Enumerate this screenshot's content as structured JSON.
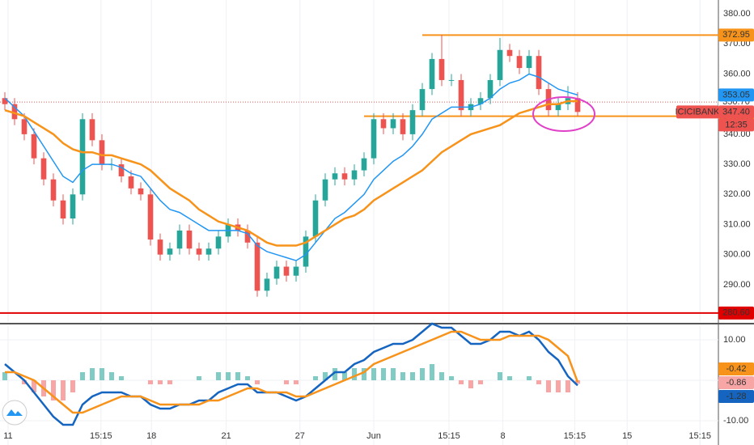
{
  "chart_data": [
    {
      "type": "candlestick",
      "symbol": "ICICIBANK",
      "countdown": "12:35",
      "x": [
        0,
        1,
        2,
        3,
        4,
        5,
        6,
        7,
        8,
        9,
        10,
        11,
        12,
        13,
        14,
        15,
        16,
        17,
        18,
        19,
        20,
        21,
        22,
        23,
        24,
        25,
        26,
        27,
        28,
        29,
        30,
        31,
        32,
        33,
        34,
        35,
        36,
        37,
        38,
        39,
        40,
        41,
        42,
        43,
        44,
        45,
        46,
        47,
        48,
        49,
        50,
        51,
        52,
        53,
        54,
        55,
        56,
        57,
        58,
        59
      ],
      "open": [
        352,
        350,
        345,
        340,
        332,
        325,
        318,
        312,
        320,
        345,
        338,
        330,
        330,
        326,
        322,
        320,
        305,
        300,
        302,
        308,
        302,
        300,
        302,
        306,
        310,
        308,
        304,
        288,
        292,
        296,
        293,
        296,
        306,
        318,
        325,
        327,
        325,
        328,
        332,
        345,
        342,
        345,
        340,
        348,
        355,
        365,
        358,
        358,
        348,
        350,
        352,
        358,
        368,
        366,
        362,
        366,
        355,
        348,
        350,
        352
      ],
      "high": [
        354,
        352,
        347,
        342,
        334,
        327,
        320,
        322,
        347,
        347,
        340,
        332,
        332,
        328,
        324,
        322,
        307,
        304,
        310,
        310,
        304,
        304,
        308,
        312,
        312,
        310,
        306,
        294,
        298,
        298,
        298,
        308,
        320,
        327,
        329,
        329,
        330,
        334,
        347,
        347,
        347,
        347,
        350,
        357,
        367,
        373,
        360,
        360,
        352,
        354,
        360,
        372,
        370,
        368,
        368,
        368,
        357,
        352,
        356,
        354
      ],
      "low": [
        348,
        343,
        338,
        330,
        323,
        316,
        310,
        310,
        318,
        336,
        328,
        328,
        324,
        320,
        318,
        303,
        298,
        298,
        300,
        300,
        298,
        298,
        300,
        304,
        306,
        302,
        286,
        286,
        290,
        291,
        291,
        294,
        304,
        316,
        323,
        323,
        323,
        326,
        330,
        340,
        340,
        338,
        338,
        346,
        353,
        356,
        356,
        346,
        346,
        348,
        350,
        356,
        364,
        360,
        360,
        353,
        346,
        346,
        348,
        346
      ],
      "close": [
        350,
        345,
        340,
        332,
        325,
        318,
        312,
        320,
        345,
        338,
        330,
        330,
        326,
        322,
        320,
        305,
        300,
        302,
        308,
        302,
        300,
        302,
        306,
        310,
        308,
        304,
        288,
        292,
        296,
        293,
        296,
        306,
        318,
        325,
        327,
        325,
        328,
        332,
        345,
        342,
        345,
        340,
        348,
        355,
        365,
        358,
        358,
        348,
        350,
        352,
        358,
        368,
        366,
        362,
        366,
        355,
        348,
        350,
        352,
        347.4
      ],
      "up_color": "#26a69a",
      "down_color": "#ef5350",
      "lines": [
        {
          "color": "#2196f3",
          "values": [
            352,
            349,
            346,
            341,
            336,
            331,
            326,
            324,
            328,
            330,
            330,
            330,
            329,
            327,
            326,
            322,
            318,
            315,
            314,
            312,
            310,
            308,
            308,
            308,
            308,
            307,
            303,
            301,
            300,
            299,
            298,
            300,
            304,
            308,
            312,
            314,
            317,
            320,
            325,
            328,
            331,
            333,
            336,
            340,
            345,
            347,
            349,
            349,
            349,
            350,
            352,
            355,
            357,
            358,
            360,
            359,
            357,
            355,
            354,
            353.05
          ]
        },
        {
          "color": "#f7931a",
          "values": [
            348,
            347,
            346,
            344,
            342,
            340,
            337,
            335,
            334,
            334,
            333,
            333,
            332,
            331,
            330,
            328,
            325,
            322,
            320,
            318,
            315,
            313,
            311,
            310,
            309,
            308,
            306,
            304,
            303,
            303,
            303,
            304,
            306,
            308,
            310,
            312,
            313,
            315,
            318,
            320,
            322,
            324,
            326,
            328,
            331,
            334,
            336,
            338,
            340,
            341,
            342,
            343,
            345,
            347,
            348,
            349,
            350,
            350,
            351,
            351
          ]
        }
      ],
      "xlim": [
        -0.5,
        73.5
      ],
      "ylim": [
        277.6,
        384.6
      ],
      "yticks": [
        {
          "value": 290,
          "label": "290.00"
        },
        {
          "value": 300,
          "label": "300.00"
        },
        {
          "value": 310,
          "label": "310.00"
        },
        {
          "value": 320,
          "label": "320.00"
        },
        {
          "value": 330,
          "label": "330.00"
        },
        {
          "value": 340,
          "label": "340.00"
        },
        {
          "value": 350,
          "label": "350.00"
        },
        {
          "value": 360,
          "label": "360.00"
        },
        {
          "value": 370,
          "label": "370.00"
        },
        {
          "value": 380,
          "label": "380.00"
        }
      ],
      "levels": [
        {
          "value": 372.95,
          "label": "372.95",
          "color": "#f7931a",
          "from": 43
        },
        {
          "value": 346,
          "label": "346.00",
          "color": "#f7931a",
          "from": 37
        },
        {
          "value": 280.6,
          "label": "280.60",
          "color": "#e00000",
          "from": -0.5
        },
        {
          "value": 350.7,
          "label": "350.70",
          "color": "#ef5350",
          "from": -0.5,
          "dotted": true
        }
      ],
      "blue_tag": {
        "value": 353.05,
        "label": "353.05"
      },
      "last_label": "347.40",
      "grid": true
    },
    {
      "type": "macd",
      "x": [
        0,
        1,
        2,
        3,
        4,
        5,
        6,
        7,
        8,
        9,
        10,
        11,
        12,
        13,
        14,
        15,
        16,
        17,
        18,
        19,
        20,
        21,
        22,
        23,
        24,
        25,
        26,
        27,
        28,
        29,
        30,
        31,
        32,
        33,
        34,
        35,
        36,
        37,
        38,
        39,
        40,
        41,
        42,
        43,
        44,
        45,
        46,
        47,
        48,
        49,
        50,
        51,
        52,
        53,
        54,
        55,
        56,
        57,
        58,
        59
      ],
      "histogram": {
        "pos_color": "#80cbc4",
        "neg_color": "#f8a5a5",
        "values": [
          2,
          0,
          -1,
          -3,
          -4,
          -5,
          -5,
          -3,
          2,
          3,
          3,
          2,
          1,
          0,
          0,
          -1,
          -1,
          -1,
          0,
          0,
          1,
          0,
          2,
          2,
          2,
          1,
          -1,
          0,
          0,
          -1,
          -1,
          0,
          1,
          2,
          3,
          2,
          3,
          3,
          3,
          3,
          3,
          2,
          2,
          3,
          4,
          2,
          1,
          -1,
          -2,
          -1,
          0,
          2,
          1,
          0,
          1,
          -1,
          -3,
          -3,
          -3,
          -0.86
        ]
      },
      "series": [
        {
          "color": "#1565c0",
          "values": [
            4,
            2,
            0,
            -3,
            -6,
            -9,
            -11,
            -11,
            -6,
            -4,
            -3,
            -3,
            -3,
            -4,
            -4,
            -6,
            -7,
            -7,
            -6,
            -6,
            -5,
            -5,
            -3,
            -2,
            -1,
            -1,
            -3,
            -3,
            -3,
            -4,
            -5,
            -4,
            -2,
            0,
            2,
            2,
            4,
            5,
            7,
            8,
            9,
            9,
            10,
            12,
            14,
            13,
            13,
            11,
            9,
            9,
            10,
            12,
            12,
            11,
            12,
            10,
            7,
            5,
            1,
            -1.28
          ]
        },
        {
          "color": "#f7931a",
          "values": [
            2,
            2,
            1,
            0,
            -2,
            -4,
            -6,
            -8,
            -8,
            -7,
            -6,
            -5,
            -4,
            -4,
            -4,
            -5,
            -6,
            -6,
            -6,
            -6,
            -6,
            -5,
            -5,
            -4,
            -3,
            -2,
            -2,
            -3,
            -3,
            -3,
            -4,
            -4,
            -3,
            -2,
            -1,
            0,
            1,
            2,
            4,
            5,
            6,
            7,
            8,
            9,
            10,
            11,
            12,
            12,
            11,
            10,
            10,
            10,
            11,
            11,
            11,
            11,
            10,
            8,
            6,
            -0.42
          ]
        }
      ],
      "xlim": [
        -0.5,
        73.5
      ],
      "ylim": [
        -16,
        13.4
      ],
      "yticks": [
        {
          "value": 10,
          "label": "10.00"
        },
        {
          "value": 0,
          "label": "0.00"
        },
        {
          "value": -10,
          "label": "-10.00"
        }
      ],
      "xticks": [
        {
          "value": 0.33,
          "label": "11"
        },
        {
          "value": 9.9,
          "label": "15:15"
        },
        {
          "value": 15.1,
          "label": "18"
        },
        {
          "value": 22.8,
          "label": "21"
        },
        {
          "value": 30.4,
          "label": "27"
        },
        {
          "value": 38,
          "label": "Jun"
        },
        {
          "value": 45.75,
          "label": "15:15"
        },
        {
          "value": 51.3,
          "label": "8"
        },
        {
          "value": 58.7,
          "label": "15:15"
        },
        {
          "value": 64.1,
          "label": "15"
        },
        {
          "value": 71.6,
          "label": "15:15"
        }
      ]
    }
  ]
}
